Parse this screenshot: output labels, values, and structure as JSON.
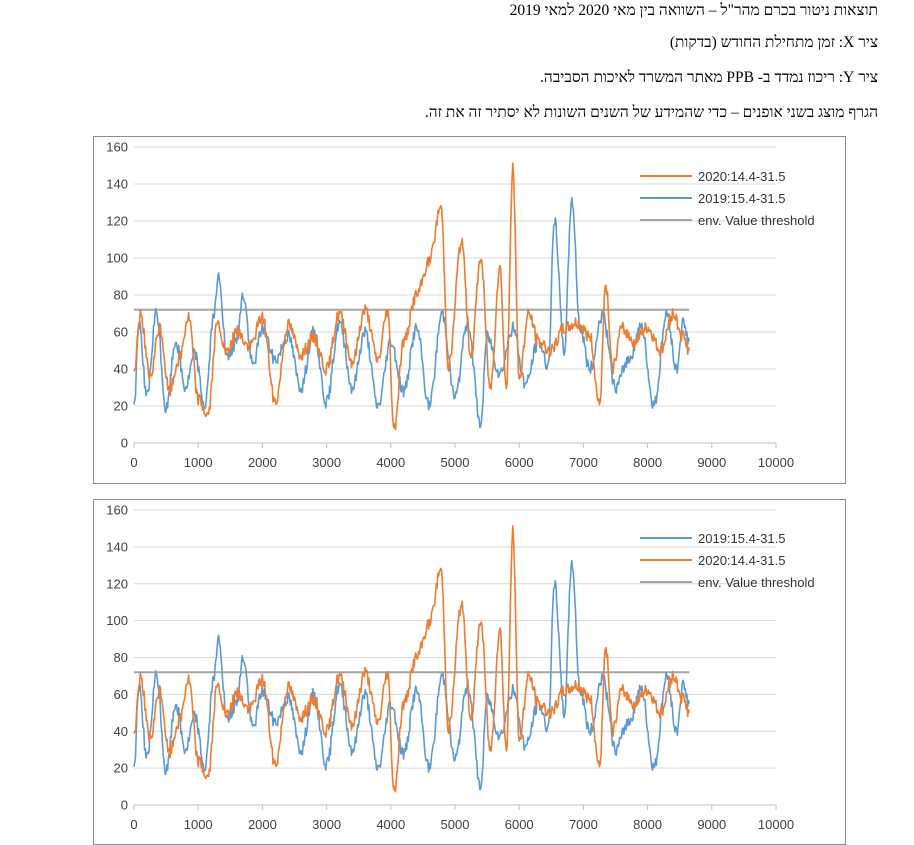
{
  "text": {
    "line1": "תוצאות ניטור בכרם מהר\"ל – השוואה בין מאי 2020 למאי 2019",
    "line2": "ציר X: זמן מתחילת החודש (בדקות)",
    "line3": "ציר Y: ריכוז נמדד ב- PPB מאתר המשרד לאיכות הסביבה.",
    "line4": "הגרף מוצג בשני אופנים – כדי שהמידע של השנים השונות לא יסתיר זה את זה."
  },
  "colors": {
    "s2020": "#ED7D31",
    "s2019": "#5B9BD5",
    "threshold": "#A5A5A5",
    "grid": "#D9D9D9"
  },
  "chart_data": [
    {
      "type": "line",
      "xlim": [
        0,
        10000
      ],
      "ylim": [
        0,
        160
      ],
      "xticks": [
        "0",
        "1000",
        "2000",
        "3000",
        "4000",
        "5000",
        "6000",
        "7000",
        "8000",
        "9000",
        "10000"
      ],
      "yticks": [
        "0",
        "20",
        "40",
        "60",
        "80",
        "100",
        "120",
        "140",
        "160"
      ],
      "grid": true,
      "legend_position": "top-right",
      "draw_order": [
        "env. Value threshold",
        "2019:15.4-31.5",
        "2020:14.4-31.5"
      ],
      "legend_order": [
        "2020:14.4-31.5",
        "2019:15.4-31.5",
        "env. Value threshold"
      ],
      "series": [
        {
          "name": "2020:14.4-31.5",
          "color": "#ED7D31",
          "x": [
            0,
            100,
            250,
            400,
            550,
            700,
            850,
            1000,
            1150,
            1300,
            1450,
            1600,
            1800,
            2000,
            2200,
            2400,
            2600,
            2800,
            3000,
            3200,
            3400,
            3600,
            3800,
            3950,
            4050,
            4200,
            4400,
            4600,
            4780,
            4900,
            5100,
            5250,
            5400,
            5550,
            5700,
            5800,
            5900,
            6000,
            6150,
            6300,
            6500,
            6700,
            6900,
            7100,
            7250,
            7350,
            7450,
            7600,
            7800,
            8000,
            8200,
            8400,
            8550,
            8650
          ],
          "y": [
            38,
            70,
            35,
            62,
            28,
            45,
            68,
            24,
            15,
            64,
            48,
            60,
            52,
            68,
            22,
            64,
            48,
            57,
            40,
            70,
            44,
            72,
            45,
            72,
            8,
            55,
            80,
            98,
            128,
            42,
            108,
            48,
            100,
            30,
            95,
            30,
            148,
            36,
            70,
            55,
            50,
            62,
            65,
            58,
            20,
            85,
            40,
            62,
            55,
            62,
            50,
            70,
            58,
            50
          ]
        },
        {
          "name": "2019:15.4-31.5",
          "color": "#5B9BD5",
          "x": [
            0,
            80,
            200,
            350,
            500,
            650,
            800,
            950,
            1100,
            1250,
            1320,
            1450,
            1600,
            1700,
            1850,
            2000,
            2200,
            2400,
            2600,
            2800,
            3000,
            3200,
            3400,
            3600,
            3800,
            4000,
            4200,
            4400,
            4600,
            4800,
            5000,
            5200,
            5400,
            5500,
            5700,
            5900,
            6100,
            6300,
            6450,
            6550,
            6700,
            6820,
            6950,
            7100,
            7300,
            7500,
            7700,
            7900,
            8100,
            8300,
            8450,
            8550,
            8650
          ],
          "y": [
            20,
            65,
            25,
            70,
            18,
            55,
            30,
            48,
            20,
            70,
            90,
            45,
            55,
            80,
            42,
            62,
            45,
            58,
            30,
            60,
            22,
            65,
            30,
            60,
            20,
            55,
            28,
            62,
            20,
            70,
            25,
            65,
            10,
            58,
            38,
            62,
            32,
            55,
            42,
            120,
            50,
            132,
            62,
            40,
            68,
            30,
            45,
            62,
            20,
            70,
            40,
            65,
            55
          ]
        },
        {
          "name": "env. Value threshold",
          "color": "#A5A5A5",
          "x": [
            0,
            8650
          ],
          "y": [
            72,
            72
          ]
        }
      ]
    },
    {
      "type": "line",
      "xlim": [
        0,
        10000
      ],
      "ylim": [
        0,
        160
      ],
      "xticks": [
        "0",
        "1000",
        "2000",
        "3000",
        "4000",
        "5000",
        "6000",
        "7000",
        "8000",
        "9000",
        "10000"
      ],
      "yticks": [
        "0",
        "20",
        "40",
        "60",
        "80",
        "100",
        "120",
        "140",
        "160"
      ],
      "grid": true,
      "legend_position": "top-right",
      "draw_order": [
        "env. Value threshold",
        "2019:15.4-31.5",
        "2020:14.4-31.5"
      ],
      "legend_order": [
        "2019:15.4-31.5",
        "2020:14.4-31.5",
        "env. Value threshold"
      ],
      "series": [
        {
          "name": "2019:15.4-31.5",
          "color": "#5B9BD5",
          "x": [
            0,
            80,
            200,
            350,
            500,
            650,
            800,
            950,
            1100,
            1250,
            1320,
            1450,
            1600,
            1700,
            1850,
            2000,
            2200,
            2400,
            2600,
            2800,
            3000,
            3200,
            3400,
            3600,
            3800,
            4000,
            4200,
            4400,
            4600,
            4800,
            5000,
            5200,
            5400,
            5500,
            5700,
            5900,
            6100,
            6300,
            6450,
            6550,
            6700,
            6820,
            6950,
            7100,
            7300,
            7500,
            7700,
            7900,
            8100,
            8300,
            8450,
            8550,
            8650
          ],
          "y": [
            20,
            65,
            25,
            70,
            18,
            55,
            30,
            48,
            20,
            70,
            90,
            45,
            55,
            80,
            42,
            62,
            45,
            58,
            30,
            60,
            22,
            65,
            30,
            60,
            20,
            55,
            28,
            62,
            20,
            70,
            25,
            65,
            10,
            58,
            38,
            62,
            32,
            55,
            42,
            120,
            50,
            132,
            62,
            40,
            68,
            30,
            45,
            62,
            20,
            70,
            40,
            65,
            55
          ]
        },
        {
          "name": "2020:14.4-31.5",
          "color": "#ED7D31",
          "x": [
            0,
            100,
            250,
            400,
            550,
            700,
            850,
            1000,
            1150,
            1300,
            1450,
            1600,
            1800,
            2000,
            2200,
            2400,
            2600,
            2800,
            3000,
            3200,
            3400,
            3600,
            3800,
            3950,
            4050,
            4200,
            4400,
            4600,
            4780,
            4900,
            5100,
            5250,
            5400,
            5550,
            5700,
            5800,
            5900,
            6000,
            6150,
            6300,
            6500,
            6700,
            6900,
            7100,
            7250,
            7350,
            7450,
            7600,
            7800,
            8000,
            8200,
            8400,
            8550,
            8650
          ],
          "y": [
            38,
            70,
            35,
            62,
            28,
            45,
            68,
            24,
            15,
            64,
            48,
            60,
            52,
            68,
            22,
            64,
            48,
            57,
            40,
            70,
            44,
            72,
            45,
            72,
            8,
            55,
            80,
            98,
            128,
            42,
            108,
            48,
            100,
            30,
            95,
            30,
            148,
            36,
            70,
            55,
            50,
            62,
            65,
            58,
            20,
            85,
            40,
            62,
            55,
            62,
            50,
            70,
            58,
            50
          ]
        },
        {
          "name": "env. Value threshold",
          "color": "#A5A5A5",
          "x": [
            0,
            8650
          ],
          "y": [
            72,
            72
          ]
        }
      ]
    }
  ]
}
